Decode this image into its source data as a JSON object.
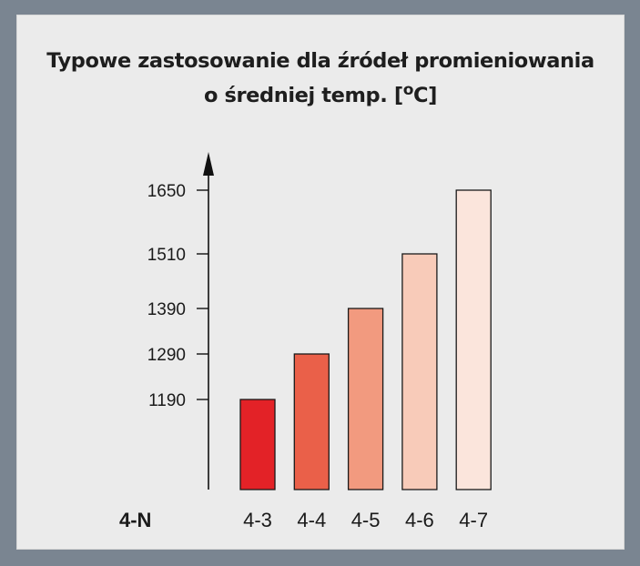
{
  "chart_data": {
    "type": "bar",
    "title_line1": "Typowe zastosowanie dla źródeł promieniowania",
    "title_line2_prefix": "o średniej temp. [",
    "title_superscript": "o",
    "title_line2_suffix": "C]",
    "xlabel": "4-N",
    "ylabel": "",
    "categories": [
      "4-3",
      "4-4",
      "4-5",
      "4-6",
      "4-7"
    ],
    "values": [
      1190,
      1290,
      1390,
      1510,
      1650
    ],
    "yticks": [
      1190,
      1290,
      1390,
      1510,
      1650
    ],
    "ylim": [
      1000,
      1900
    ],
    "bar_colors": [
      "#e32227",
      "#ea6049",
      "#f29a7f",
      "#f8cbb9",
      "#fbe5dc"
    ],
    "grid": false,
    "legend": "none"
  }
}
